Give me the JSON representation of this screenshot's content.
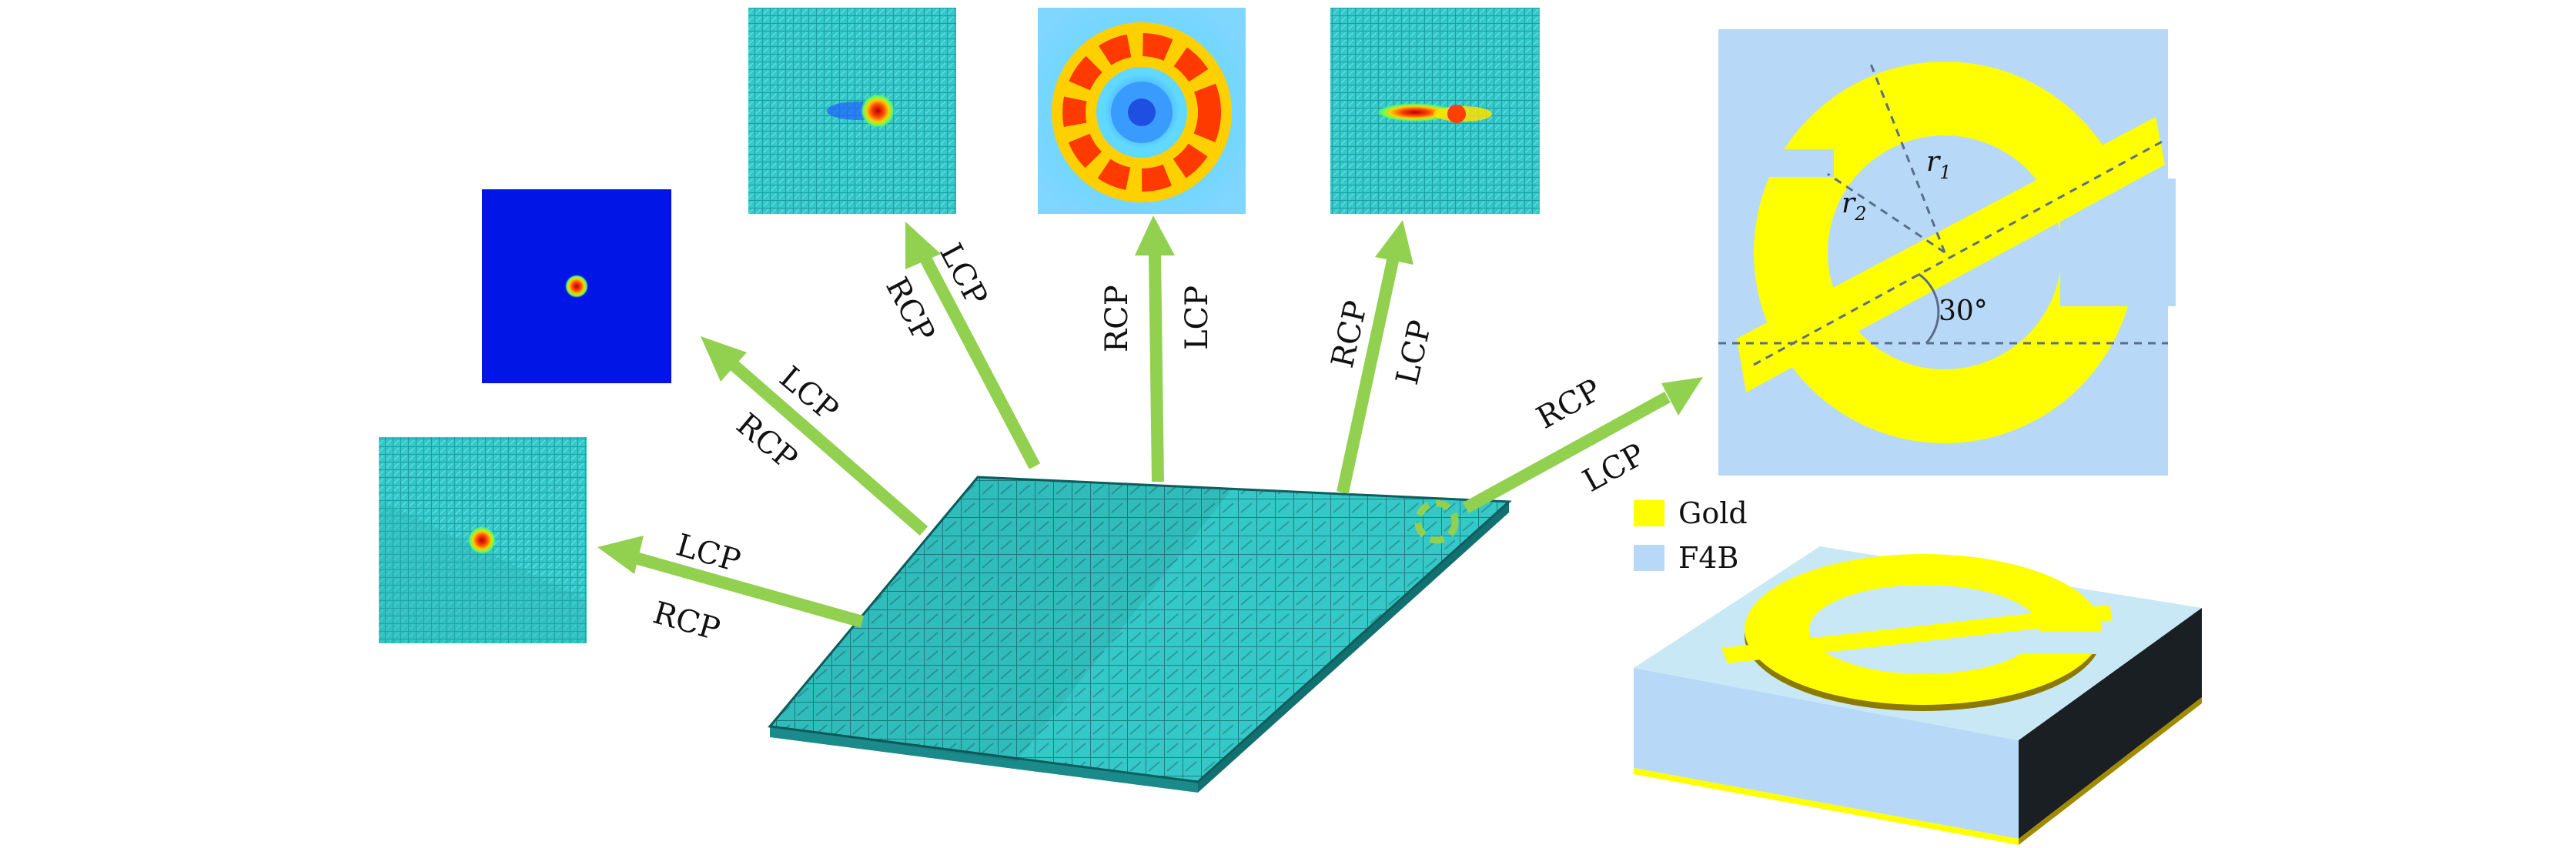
{
  "colors": {
    "arrow": "#92d050",
    "surface": "#35c8c8",
    "gold": "#ffff00",
    "f4b": "#b7d9f7",
    "substrate_side": "#1a1f24",
    "field_blue": "#0015e6"
  },
  "beams": [
    {
      "top": "LCP",
      "bottom": "RCP"
    },
    {
      "top": "LCP",
      "bottom": "RCP"
    },
    {
      "top": "LCP",
      "bottom": "RCP"
    },
    {
      "top": "LCP",
      "bottom": "RCP"
    },
    {
      "top": "RCP",
      "bottom": "LCP"
    },
    {
      "top": "RCP",
      "bottom": "LCP"
    }
  ],
  "unit_cell": {
    "radius1_label": "r",
    "radius1_sub": "1",
    "radius2_label": "r",
    "radius2_sub": "2",
    "angle_label": "30°"
  },
  "legend": [
    {
      "name": "Gold",
      "color": "#ffff00"
    },
    {
      "name": "F4B",
      "color": "#b7d9f7"
    }
  ]
}
